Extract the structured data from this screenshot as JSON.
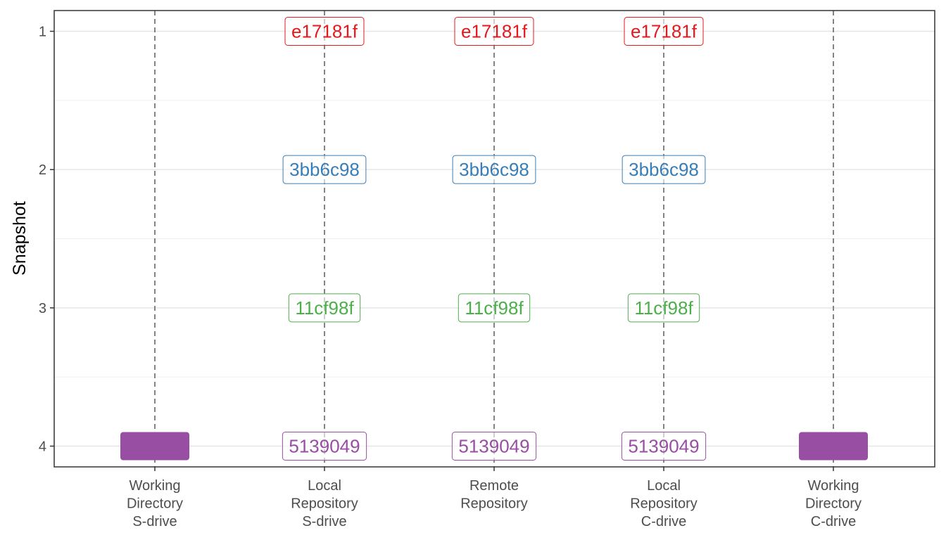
{
  "chart_data": {
    "type": "scatter",
    "xlabel": "",
    "ylabel": "Snapshot",
    "categories": [
      [
        "Working",
        "Directory",
        "S-drive"
      ],
      [
        "Local",
        "Repository",
        "S-drive"
      ],
      [
        "Remote",
        "Repository"
      ],
      [
        "Local",
        "Repository",
        "C-drive"
      ],
      [
        "Working",
        "Directory",
        "C-drive"
      ]
    ],
    "y_ticks": [
      1,
      2,
      3,
      4
    ],
    "y_tick_labels": [
      "1",
      "2",
      "3",
      "4"
    ],
    "ylim": [
      0.85,
      4.15
    ],
    "y_reversed": true,
    "grid": true,
    "snapshots": [
      {
        "snapshot": 1,
        "hash": "e17181f",
        "color": "#e41a1c",
        "columns": [
          1,
          2,
          3
        ]
      },
      {
        "snapshot": 2,
        "hash": "3bb6c98",
        "color": "#377eb8",
        "columns": [
          1,
          2,
          3
        ]
      },
      {
        "snapshot": 3,
        "hash": "11cf98f",
        "color": "#4daf4a",
        "columns": [
          1,
          2,
          3
        ]
      },
      {
        "snapshot": 4,
        "hash": "5139049",
        "color": "#984ea3",
        "columns": [
          1,
          2,
          3
        ]
      }
    ],
    "working_blocks": [
      {
        "column": 0,
        "snapshot": 4,
        "color": "#984ea3"
      },
      {
        "column": 4,
        "snapshot": 4,
        "color": "#984ea3"
      }
    ]
  }
}
